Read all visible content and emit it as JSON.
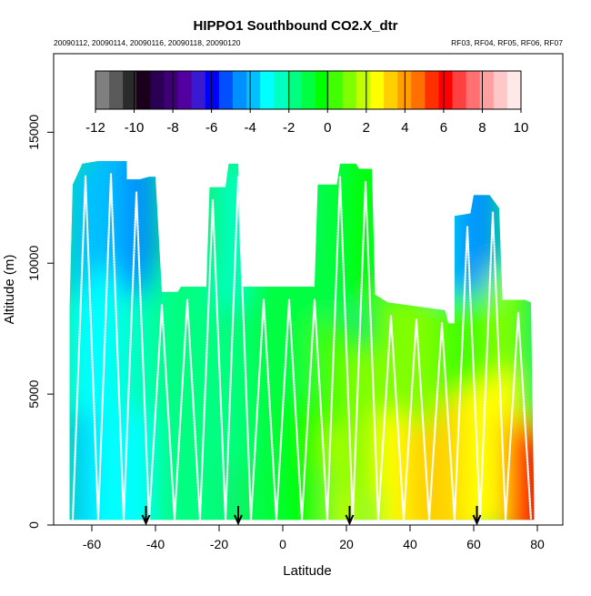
{
  "chart_data": {
    "type": "heatmap",
    "title": "HIPPO1 Southbound CO2.X_dtr",
    "subtitle_left": "20090112, 20090114, 20090116, 20090118, 20090120",
    "subtitle_right": "RF03, RF04, RF05, RF06, RF07",
    "xlabel": "Latitude",
    "ylabel": "Altitude (m)",
    "xlim": [
      -72,
      88
    ],
    "ylim": [
      0,
      18000
    ],
    "x_ticks": [
      -60,
      -40,
      -20,
      0,
      20,
      40,
      60,
      80
    ],
    "y_ticks": [
      0,
      5000,
      10000,
      15000
    ],
    "grid": false,
    "colorbar": {
      "placement": "top-inside",
      "range": [
        -12,
        10
      ],
      "ticks": [
        -12,
        -10,
        -8,
        -6,
        -4,
        -2,
        0,
        2,
        4,
        6,
        8,
        10
      ],
      "colors": [
        "#7f7f7f",
        "#5a5a5a",
        "#2b2b2b",
        "#1a001a",
        "#2a0055",
        "#3d0077",
        "#5200a0",
        "#3a1ad0",
        "#0000ff",
        "#0050ff",
        "#0090ff",
        "#00c0ff",
        "#00ffff",
        "#00ffc0",
        "#00ff80",
        "#00ff40",
        "#00ff00",
        "#40ff00",
        "#80ff00",
        "#c0ff00",
        "#ffff00",
        "#ffd000",
        "#ffa000",
        "#ff7000",
        "#ff3000",
        "#ff0000",
        "#ff4040",
        "#ff7070",
        "#ffa0a0",
        "#ffc8c8",
        "#ffe8e8"
      ]
    },
    "profile_tops": [
      {
        "lat": -67,
        "top": 8200
      },
      {
        "lat": -66,
        "top": 13000
      },
      {
        "lat": -63,
        "top": 13800
      },
      {
        "lat": -58,
        "top": 13900
      },
      {
        "lat": -49,
        "top": 13900
      },
      {
        "lat": -49,
        "top": 13200
      },
      {
        "lat": -45,
        "top": 13200
      },
      {
        "lat": -42,
        "top": 13300
      },
      {
        "lat": -40,
        "top": 13300
      },
      {
        "lat": -38,
        "top": 8900
      },
      {
        "lat": -33,
        "top": 8900
      },
      {
        "lat": -32,
        "top": 9100
      },
      {
        "lat": -24,
        "top": 9100
      },
      {
        "lat": -23,
        "top": 12900
      },
      {
        "lat": -18,
        "top": 12900
      },
      {
        "lat": -17,
        "top": 13800
      },
      {
        "lat": -14,
        "top": 13800
      },
      {
        "lat": -13,
        "top": 9100
      },
      {
        "lat": 10,
        "top": 9100
      },
      {
        "lat": 11,
        "top": 13000
      },
      {
        "lat": 17,
        "top": 13000
      },
      {
        "lat": 18,
        "top": 13800
      },
      {
        "lat": 23,
        "top": 13800
      },
      {
        "lat": 24,
        "top": 13600
      },
      {
        "lat": 28,
        "top": 13600
      },
      {
        "lat": 29,
        "top": 8800
      },
      {
        "lat": 33,
        "top": 8500
      },
      {
        "lat": 45,
        "top": 8300
      },
      {
        "lat": 51,
        "top": 8200
      },
      {
        "lat": 52,
        "top": 7700
      },
      {
        "lat": 54,
        "top": 7700
      },
      {
        "lat": 54,
        "top": 11800
      },
      {
        "lat": 59,
        "top": 11900
      },
      {
        "lat": 60,
        "top": 12600
      },
      {
        "lat": 65,
        "top": 12600
      },
      {
        "lat": 68,
        "top": 12100
      },
      {
        "lat": 69,
        "top": 8600
      },
      {
        "lat": 76,
        "top": 8600
      },
      {
        "lat": 78,
        "top": 8500
      },
      {
        "lat": 79,
        "top": 300
      }
    ],
    "field_cells": [
      {
        "lat": -62,
        "alt": 11000,
        "v": -3.5
      },
      {
        "lat": -62,
        "alt": 6000,
        "v": -3.0
      },
      {
        "lat": -62,
        "alt": 1500,
        "v": -3.5
      },
      {
        "lat": -55,
        "alt": 12000,
        "v": -4.0
      },
      {
        "lat": -55,
        "alt": 7000,
        "v": -3.0
      },
      {
        "lat": -55,
        "alt": 2000,
        "v": -2.8
      },
      {
        "lat": -45,
        "alt": 11500,
        "v": -4.8
      },
      {
        "lat": -45,
        "alt": 6000,
        "v": -2.5
      },
      {
        "lat": -45,
        "alt": 1500,
        "v": -3.2
      },
      {
        "lat": -35,
        "alt": 7000,
        "v": -2.0
      },
      {
        "lat": -35,
        "alt": 2000,
        "v": -2.0
      },
      {
        "lat": -25,
        "alt": 7000,
        "v": -1.8
      },
      {
        "lat": -25,
        "alt": 2000,
        "v": -1.6
      },
      {
        "lat": -15,
        "alt": 11000,
        "v": -2.2
      },
      {
        "lat": -15,
        "alt": 5000,
        "v": -1.5
      },
      {
        "lat": -5,
        "alt": 7000,
        "v": -1.2
      },
      {
        "lat": -5,
        "alt": 2000,
        "v": -1.0
      },
      {
        "lat": 5,
        "alt": 7000,
        "v": -0.8
      },
      {
        "lat": 5,
        "alt": 2000,
        "v": 0.0
      },
      {
        "lat": 15,
        "alt": 11000,
        "v": -1.0
      },
      {
        "lat": 15,
        "alt": 5000,
        "v": 0.5
      },
      {
        "lat": 20,
        "alt": 1000,
        "v": 1.5
      },
      {
        "lat": 25,
        "alt": 11500,
        "v": 0.0
      },
      {
        "lat": 25,
        "alt": 4000,
        "v": 1.0
      },
      {
        "lat": 35,
        "alt": 6000,
        "v": 1.0
      },
      {
        "lat": 35,
        "alt": 1500,
        "v": 2.5
      },
      {
        "lat": 45,
        "alt": 6000,
        "v": 1.2
      },
      {
        "lat": 45,
        "alt": 1000,
        "v": 3.5
      },
      {
        "lat": 55,
        "alt": 10500,
        "v": -3.5
      },
      {
        "lat": 55,
        "alt": 6000,
        "v": 0.5
      },
      {
        "lat": 55,
        "alt": 2000,
        "v": 3.0
      },
      {
        "lat": 62,
        "alt": 11500,
        "v": -4.5
      },
      {
        "lat": 62,
        "alt": 6000,
        "v": 0.5
      },
      {
        "lat": 62,
        "alt": 2500,
        "v": 2.5
      },
      {
        "lat": 70,
        "alt": 7000,
        "v": 0.8
      },
      {
        "lat": 70,
        "alt": 3000,
        "v": 2.5
      },
      {
        "lat": 75,
        "alt": 1500,
        "v": 3.5
      },
      {
        "lat": 77,
        "alt": 1000,
        "v": 5.0
      },
      {
        "lat": 78,
        "alt": 600,
        "v": 6.0
      }
    ],
    "leg_x": [
      -66,
      -62,
      -58,
      -54,
      -50,
      -46,
      -42,
      -38,
      -34,
      -30,
      -26,
      -22,
      -18,
      -14,
      -10,
      -6,
      -2,
      2,
      6,
      10,
      14,
      18,
      22,
      26,
      30,
      34,
      38,
      42,
      46,
      50,
      54,
      58,
      62,
      66,
      70,
      74,
      78
    ],
    "arrows_lat": [
      -43,
      -14,
      21,
      61
    ]
  }
}
